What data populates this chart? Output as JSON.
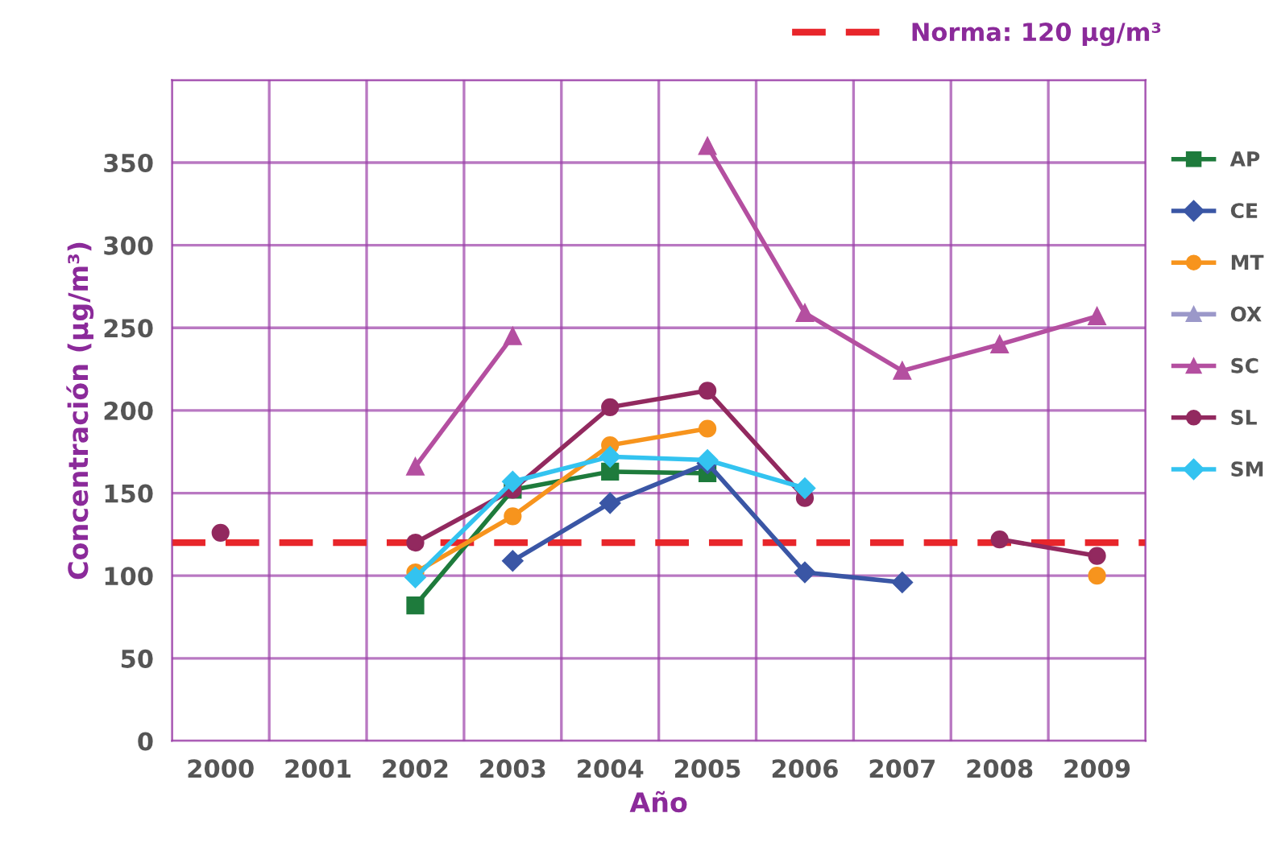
{
  "chart_data": {
    "type": "line",
    "xlabel": "Año",
    "ylabel": "Concentración (µg/m³)",
    "categories": [
      "2000",
      "2001",
      "2002",
      "2003",
      "2004",
      "2005",
      "2006",
      "2007",
      "2008",
      "2009"
    ],
    "series": [
      {
        "name": "AP",
        "color": "#1e7b3c",
        "marker": "square",
        "values": [
          null,
          null,
          82,
          152,
          163,
          162,
          null,
          null,
          null,
          null
        ]
      },
      {
        "name": "CE",
        "color": "#3a56a5",
        "marker": "diamond",
        "values": [
          null,
          null,
          null,
          109,
          144,
          168,
          102,
          96,
          null,
          null
        ]
      },
      {
        "name": "MT",
        "color": "#f7941d",
        "marker": "circle",
        "values": [
          null,
          null,
          102,
          136,
          179,
          189,
          null,
          null,
          null,
          100
        ]
      },
      {
        "name": "OX",
        "color": "#9b98c9",
        "marker": "triangle",
        "values": [
          null,
          null,
          null,
          null,
          null,
          null,
          null,
          null,
          null,
          null
        ]
      },
      {
        "name": "SC",
        "color": "#b44fa0",
        "marker": "triangle",
        "values": [
          null,
          null,
          166,
          245,
          null,
          360,
          259,
          224,
          240,
          257
        ]
      },
      {
        "name": "SL",
        "color": "#92295f",
        "marker": "circle",
        "values": [
          126,
          null,
          120,
          152,
          202,
          212,
          147,
          null,
          122,
          112
        ]
      },
      {
        "name": "SM",
        "color": "#33c3f0",
        "marker": "diamond",
        "values": [
          null,
          null,
          99,
          157,
          172,
          170,
          153,
          null,
          null,
          null
        ]
      }
    ],
    "ylim": [
      0,
      400
    ],
    "yticks": [
      0,
      50,
      100,
      150,
      200,
      250,
      300,
      350,
      {
        "value": 400,
        "label": null
      }
    ],
    "ref_lines": [
      {
        "axis": "y",
        "value": 120,
        "label": "Norma: 120 µg/m³",
        "color": "#e8262b",
        "line_style": "dashed"
      }
    ],
    "grid": true,
    "legend": "right"
  }
}
